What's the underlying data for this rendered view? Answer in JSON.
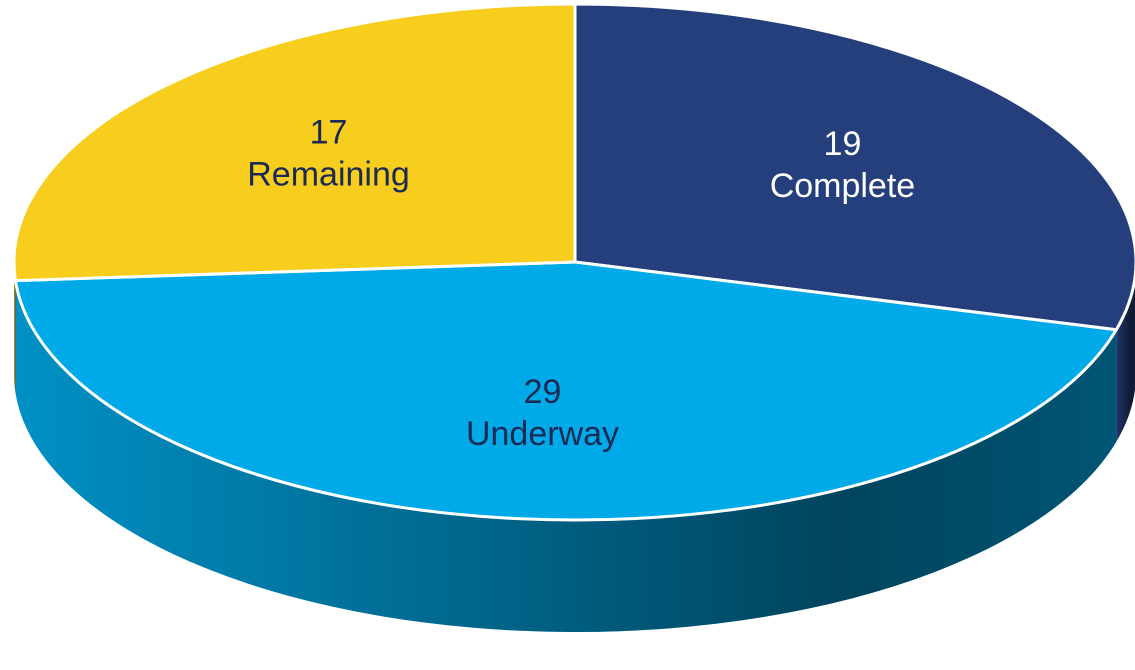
{
  "chart_data": {
    "type": "pie",
    "categories": [
      "Complete",
      "Underway",
      "Remaining"
    ],
    "values": [
      19,
      29,
      17
    ],
    "colors": [
      "#243f7c",
      "#00aae8",
      "#f7cd1e"
    ],
    "label_colors": [
      "#ffffff",
      "#1a2a55",
      "#1a2a55"
    ]
  }
}
